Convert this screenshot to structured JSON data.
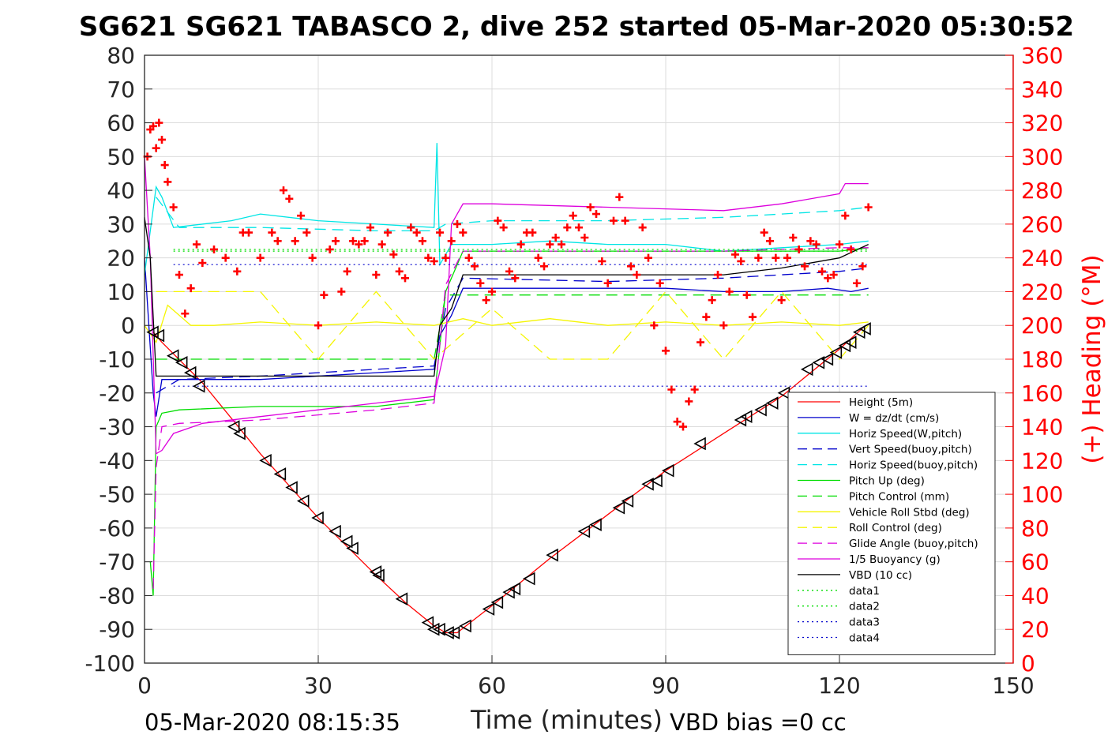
{
  "title": "SG621 SG621 TABASCO 2, dive 252 started 05-Mar-2020 05:30:52",
  "footer_left": "05-Mar-2020 08:15:35",
  "footer_right": "VBD bias =0 cc",
  "chart_data": {
    "type": "line",
    "xlabel": "Time (minutes)",
    "ylabel_right": "(+) Heading (°M)",
    "xlim": [
      0,
      150
    ],
    "ylim_left": [
      -100,
      80
    ],
    "ylim_right": [
      0,
      360
    ],
    "xticks": [
      0,
      30,
      60,
      90,
      120,
      150
    ],
    "yticks_left": [
      -100,
      -90,
      -80,
      -70,
      -60,
      -50,
      -40,
      -30,
      -20,
      -10,
      0,
      10,
      20,
      30,
      40,
      50,
      60,
      70,
      80
    ],
    "yticks_right": [
      0,
      20,
      40,
      60,
      80,
      100,
      120,
      140,
      160,
      180,
      200,
      220,
      240,
      260,
      280,
      300,
      320,
      340,
      360
    ],
    "grid": true,
    "legend_position": "lower-right",
    "legend": [
      {
        "name": "Height (5m)",
        "color": "#ff0000",
        "dash": "solid"
      },
      {
        "name": "W = dz/dt (cm/s)",
        "color": "#0000cc",
        "dash": "solid"
      },
      {
        "name": "Horiz Speed(W,pitch)",
        "color": "#00e5e5",
        "dash": "solid"
      },
      {
        "name": "Vert Speed(buoy,pitch)",
        "color": "#0000cc",
        "dash": "dashed"
      },
      {
        "name": "Horiz Speed(buoy,pitch)",
        "color": "#00e5e5",
        "dash": "dashed"
      },
      {
        "name": "Pitch Up (deg)",
        "color": "#00dd00",
        "dash": "solid"
      },
      {
        "name": "Pitch Control (mm)",
        "color": "#00dd00",
        "dash": "dashed"
      },
      {
        "name": "Vehicle Roll Stbd (deg)",
        "color": "#f5f500",
        "dash": "solid"
      },
      {
        "name": "Roll Control (deg)",
        "color": "#f5f500",
        "dash": "dashed"
      },
      {
        "name": "Glide Angle (buoy,pitch)",
        "color": "#dd00dd",
        "dash": "dashed"
      },
      {
        "name": "1/5 Buoyancy (g)",
        "color": "#dd00dd",
        "dash": "solid"
      },
      {
        "name": "VBD (10 cc)",
        "color": "#000000",
        "dash": "solid"
      },
      {
        "name": "data1",
        "color": "#00dd00",
        "dash": "dotted"
      },
      {
        "name": "data2",
        "color": "#00dd00",
        "dash": "dotted"
      },
      {
        "name": "data3",
        "color": "#0000cc",
        "dash": "dotted"
      },
      {
        "name": "data4",
        "color": "#0000cc",
        "dash": "dotted"
      }
    ],
    "series": [
      {
        "name": "Height (5m)",
        "axis": "left",
        "color": "#ff0000",
        "x": [
          1.5,
          3,
          10,
          20,
          30,
          40,
          45,
          50,
          52,
          54,
          60,
          70,
          80,
          90,
          100,
          110,
          120,
          124.5
        ],
        "y": [
          -2,
          -5,
          -17,
          -38,
          -57,
          -74,
          -82,
          -89,
          -91,
          -91,
          -83,
          -69,
          -56,
          -43,
          -32,
          -21,
          -7,
          0
        ]
      },
      {
        "name": "W = dz/dt (cm/s)",
        "axis": "left",
        "color": "#0000cc",
        "x": [
          0,
          1.5,
          2,
          3,
          6,
          20,
          40,
          50,
          51,
          53,
          55,
          60,
          80,
          90,
          100,
          110,
          118,
          122,
          125
        ],
        "y": [
          20,
          -20,
          -27,
          -16,
          -16,
          -16,
          -14,
          -13,
          -3,
          3,
          11,
          11,
          11,
          11,
          10,
          10,
          11,
          10,
          11
        ]
      },
      {
        "name": "Horiz Speed(W,pitch)",
        "axis": "left",
        "color": "#00e5e5",
        "x": [
          0,
          1,
          2,
          3,
          5,
          15,
          20,
          30,
          40,
          50,
          50.5,
          51,
          53,
          60,
          70,
          80,
          90,
          100,
          110,
          120,
          125
        ],
        "y": [
          15,
          28,
          41,
          38,
          29,
          31,
          33,
          31,
          30,
          29,
          54,
          18,
          24,
          24,
          25,
          24,
          24,
          22,
          23,
          24,
          25
        ]
      },
      {
        "name": "Vert Speed(buoy,pitch)",
        "axis": "left",
        "color": "#0000cc",
        "dash": "dashed",
        "x": [
          2,
          6,
          20,
          40,
          50,
          52,
          55,
          80,
          100,
          110,
          120,
          125
        ],
        "y": [
          -20,
          -16,
          -15,
          -13,
          -12,
          5,
          14,
          13,
          14,
          15,
          16,
          17
        ]
      },
      {
        "name": "Horiz Speed(buoy,pitch)",
        "axis": "left",
        "color": "#00e5e5",
        "dash": "dashed",
        "x": [
          2,
          6,
          20,
          40,
          50,
          52,
          60,
          80,
          100,
          110,
          120,
          125
        ],
        "y": [
          38,
          29,
          29,
          28,
          28,
          30,
          31,
          31,
          32,
          33,
          34,
          35
        ]
      },
      {
        "name": "Pitch Up (deg)",
        "axis": "left",
        "color": "#00dd00",
        "x": [
          1,
          1.5,
          2,
          3,
          6,
          20,
          40,
          50,
          52,
          55,
          80,
          100,
          120,
          125
        ],
        "y": [
          -70,
          -80,
          -30,
          -26,
          -25,
          -24,
          -24,
          -22,
          10,
          22,
          22,
          22,
          22,
          23
        ]
      },
      {
        "name": "Pitch Control (mm)",
        "axis": "left",
        "color": "#00dd00",
        "dash": "dashed",
        "x": [
          2,
          6,
          20,
          40,
          50,
          52,
          60,
          80,
          100,
          120,
          125
        ],
        "y": [
          -10,
          -10,
          -10,
          -10,
          -10,
          9,
          9,
          9,
          9,
          9,
          9
        ]
      },
      {
        "name": "Vehicle Roll Stbd (deg)",
        "axis": "left",
        "color": "#f5f500",
        "x": [
          0,
          2,
          4,
          8,
          12,
          20,
          30,
          40,
          50,
          55,
          60,
          70,
          80,
          90,
          100,
          110,
          120,
          125
        ],
        "y": [
          0,
          -5,
          6,
          0,
          0,
          1,
          0,
          1,
          0,
          2,
          0,
          2,
          0,
          1,
          0,
          1,
          0,
          1
        ]
      },
      {
        "name": "Roll Control (deg)",
        "axis": "left",
        "color": "#f5f500",
        "dash": "dashed",
        "x": [
          2,
          10,
          20,
          30,
          40,
          50,
          60,
          70,
          80,
          90,
          100,
          110,
          120,
          125
        ],
        "y": [
          10,
          10,
          10,
          -10,
          10,
          -10,
          5,
          -10,
          -10,
          10,
          -10,
          10,
          -10,
          0
        ]
      },
      {
        "name": "Glide Angle (buoy,pitch)",
        "axis": "left",
        "color": "#dd00dd",
        "dash": "dashed",
        "x": [
          1.5,
          2,
          3,
          6,
          20,
          40,
          50,
          52,
          55,
          80,
          100,
          120,
          125
        ],
        "y": [
          -78,
          -42,
          -30,
          -29,
          -28,
          -25,
          -23,
          12,
          22,
          22,
          22,
          23,
          23
        ]
      },
      {
        "name": "1/5 Buoyancy (g)",
        "axis": "left",
        "color": "#dd00dd",
        "x": [
          0,
          1,
          2,
          3,
          5,
          10,
          20,
          30,
          40,
          50,
          52,
          53,
          55,
          60,
          80,
          100,
          110,
          120,
          121,
          125
        ],
        "y": [
          50,
          20,
          -38,
          -37,
          -32,
          -29,
          -27,
          -25,
          -23,
          -21,
          -6,
          30,
          36,
          36,
          35,
          34,
          36,
          39,
          42,
          42
        ]
      },
      {
        "name": "VBD (10 cc)",
        "axis": "left",
        "color": "#000000",
        "x": [
          0,
          1,
          2,
          2.5,
          10,
          30,
          50,
          51,
          53,
          55,
          60,
          80,
          100,
          110,
          120,
          125
        ],
        "y": [
          32,
          20,
          -15,
          -15,
          -15,
          -15,
          -15,
          0,
          5,
          15,
          15,
          15,
          15,
          17,
          20,
          24
        ]
      },
      {
        "name": "data1",
        "axis": "left",
        "color": "#00dd00",
        "dash": "dotted",
        "x": [
          5,
          125
        ],
        "y": [
          22.5,
          22.5
        ]
      },
      {
        "name": "data2",
        "axis": "left",
        "color": "#00dd00",
        "dash": "dotted",
        "x": [
          5,
          125
        ],
        "y": [
          22,
          22
        ]
      },
      {
        "name": "data3",
        "axis": "left",
        "color": "#0000cc",
        "dash": "dotted",
        "x": [
          5,
          125
        ],
        "y": [
          18,
          18
        ]
      },
      {
        "name": "data4",
        "axis": "left",
        "color": "#0000cc",
        "dash": "dotted",
        "x": [
          5,
          125
        ],
        "y": [
          -18,
          -18
        ]
      },
      {
        "name": "(+) Heading (°M)",
        "axis": "right",
        "color": "#ff0000",
        "marker": "+",
        "line": false,
        "x": [
          0.5,
          1,
          1.5,
          2,
          2.5,
          3,
          3.5,
          4,
          5,
          6,
          7,
          8,
          9,
          10,
          12,
          14,
          16,
          17,
          18,
          20,
          22,
          23,
          24,
          25,
          26,
          27,
          28,
          29,
          30,
          31,
          32,
          33,
          34,
          35,
          36,
          37,
          38,
          39,
          40,
          41,
          42,
          43,
          44,
          45,
          46,
          47,
          48,
          49,
          50,
          51,
          52,
          53,
          54,
          55,
          56,
          57,
          58,
          59,
          60,
          61,
          62,
          63,
          64,
          65,
          66,
          67,
          68,
          69,
          70,
          71,
          72,
          73,
          74,
          75,
          76,
          77,
          78,
          79,
          80,
          81,
          82,
          83,
          84,
          85,
          86,
          87,
          88,
          89,
          90,
          91,
          92,
          93,
          94,
          95,
          96,
          97,
          98,
          99,
          100,
          101,
          102,
          103,
          104,
          105,
          106,
          107,
          108,
          109,
          110,
          111,
          112,
          113,
          114,
          115,
          116,
          117,
          118,
          119,
          120,
          121,
          122,
          123,
          124,
          125
        ],
        "y": [
          300,
          316,
          318,
          305,
          320,
          310,
          295,
          285,
          270,
          230,
          207,
          222,
          248,
          237,
          245,
          240,
          232,
          255,
          255,
          240,
          255,
          250,
          280,
          275,
          250,
          265,
          255,
          240,
          200,
          218,
          245,
          250,
          220,
          232,
          250,
          248,
          250,
          258,
          230,
          248,
          255,
          242,
          232,
          228,
          258,
          255,
          250,
          240,
          238,
          255,
          240,
          250,
          260,
          255,
          240,
          235,
          225,
          215,
          220,
          262,
          258,
          232,
          228,
          248,
          255,
          255,
          240,
          235,
          248,
          252,
          248,
          258,
          265,
          258,
          252,
          270,
          266,
          238,
          225,
          262,
          276,
          262,
          235,
          230,
          258,
          240,
          200,
          225,
          185,
          162,
          143,
          140,
          155,
          162,
          190,
          205,
          215,
          230,
          200,
          220,
          242,
          238,
          218,
          205,
          240,
          255,
          250,
          240,
          215,
          240,
          252,
          245,
          235,
          250,
          248,
          232,
          228,
          230,
          248,
          265,
          245,
          225,
          235,
          270
        ]
      },
      {
        "name": "Height markers",
        "axis": "left",
        "color": "#000000",
        "marker": "triangle",
        "line": false,
        "x": [
          1.5,
          2.5,
          5,
          6.5,
          8,
          9.5,
          15.5,
          16.5,
          21,
          23.5,
          25.5,
          27.5,
          30,
          33,
          35,
          36,
          40,
          40.5,
          44.5,
          49,
          50,
          51,
          52.5,
          53.5,
          55.5,
          59.5,
          61,
          63,
          64,
          66.5,
          70.5,
          76,
          78,
          82,
          83.5,
          87,
          88.5,
          90.5,
          96,
          103,
          104,
          106.5,
          108.5,
          110.5,
          114.5,
          116.5,
          118,
          119.5,
          121,
          122,
          123.5,
          124.5
        ],
        "y": [
          -2,
          -3,
          -9,
          -11,
          -14,
          -18,
          -30,
          -32,
          -40,
          -44,
          -48,
          -52,
          -57,
          -61,
          -64,
          -66,
          -73,
          -74,
          -81,
          -88,
          -90,
          -90,
          -91,
          -91,
          -89,
          -84,
          -82,
          -79,
          -78,
          -75,
          -68,
          -61,
          -59,
          -54,
          -52,
          -47,
          -46,
          -43,
          -35,
          -28,
          -27,
          -25,
          -23,
          -20,
          -13,
          -11,
          -10,
          -8,
          -6,
          -5,
          -2,
          -1
        ]
      }
    ]
  }
}
